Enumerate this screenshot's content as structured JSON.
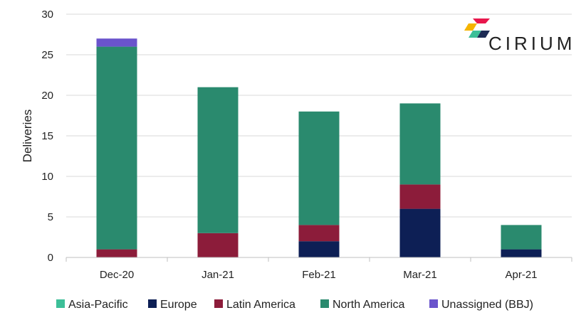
{
  "chart_data": {
    "type": "bar",
    "stacked": true,
    "categories": [
      "Dec-20",
      "Jan-21",
      "Feb-21",
      "Mar-21",
      "Apr-21"
    ],
    "series": [
      {
        "name": "Asia-Pacific",
        "color": "#3dbf98",
        "values": [
          0,
          0,
          0,
          0,
          0
        ]
      },
      {
        "name": "Europe",
        "color": "#0d1f55",
        "values": [
          0,
          0,
          2,
          6,
          1
        ]
      },
      {
        "name": "Latin America",
        "color": "#8c1c3a",
        "values": [
          1,
          3,
          2,
          3,
          0
        ]
      },
      {
        "name": "North America",
        "color": "#2a8a6e",
        "values": [
          25,
          18,
          14,
          10,
          3
        ]
      },
      {
        "name": "Unassigned (BBJ)",
        "color": "#6a54cc",
        "values": [
          1,
          0,
          0,
          0,
          0
        ]
      }
    ],
    "title": "",
    "xlabel": "",
    "ylabel": "Deliveries",
    "ylim": [
      0,
      30
    ],
    "yticks": [
      0,
      5,
      10,
      15,
      20,
      25,
      30
    ],
    "grid": true,
    "legend": "bottom"
  },
  "logo": {
    "name": "cirium-logo-icon",
    "text": "CIRIUM",
    "colors": [
      "#e8174c",
      "#f5b400",
      "#3dbf98",
      "#1d2b55"
    ]
  }
}
